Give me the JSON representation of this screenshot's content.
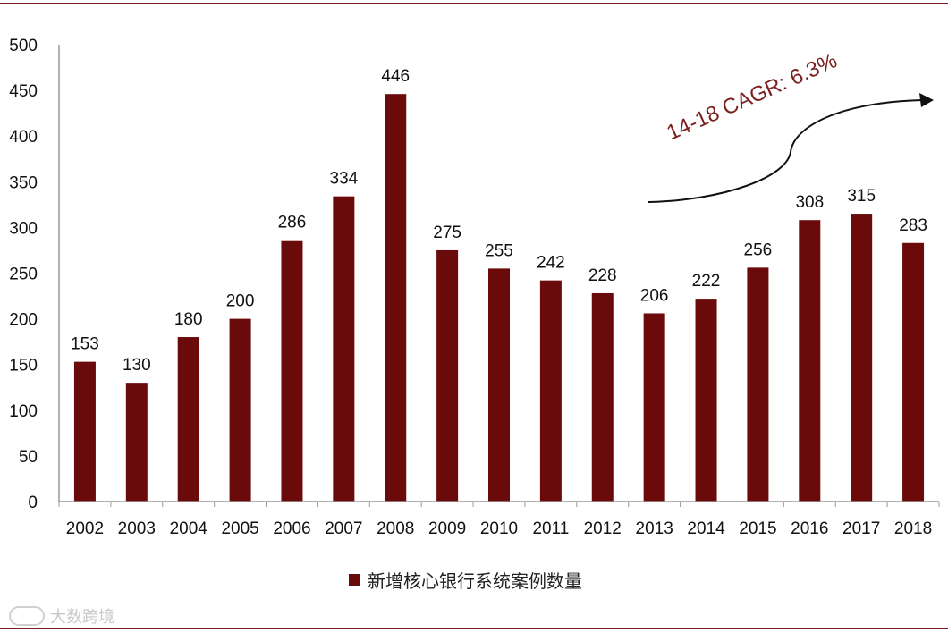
{
  "chart_data": {
    "type": "bar",
    "categories": [
      "2002",
      "2003",
      "2004",
      "2005",
      "2006",
      "2007",
      "2008",
      "2009",
      "2010",
      "2011",
      "2012",
      "2013",
      "2014",
      "2015",
      "2016",
      "2017",
      "2018"
    ],
    "series": [
      {
        "name": "新增核心银行系统案例数量",
        "values": [
          153,
          130,
          180,
          200,
          286,
          334,
          446,
          275,
          255,
          242,
          228,
          206,
          222,
          256,
          308,
          315,
          283
        ]
      }
    ],
    "ylim": [
      0,
      500
    ],
    "yticks": [
      0,
      50,
      100,
      150,
      200,
      250,
      300,
      350,
      400,
      450,
      500
    ],
    "xlabel": "",
    "ylabel": "",
    "bar_color": "#6b0a0a",
    "annotation": "14-18 CAGR: 6.3%",
    "legend_position": "bottom"
  },
  "watermark": {
    "text": "大数跨境"
  }
}
